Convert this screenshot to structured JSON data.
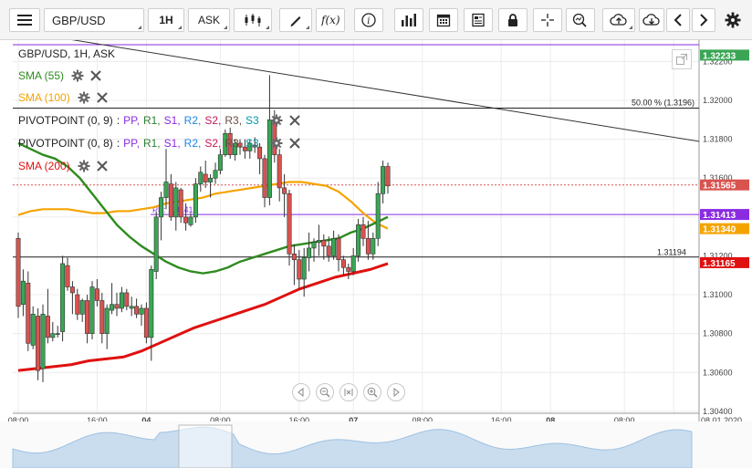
{
  "toolbar": {
    "symbol": "GBP/USD",
    "timeframe": "1H",
    "price_type": "ASK"
  },
  "legend": {
    "title": "GBP/USD, 1H, ASK",
    "sma55": "SMA (55)",
    "sma100": "SMA (100)",
    "pivot1_label": "PIVOTPOINT (0, 9)",
    "pivot2_label": "PIVOTPOINT (0, 8)",
    "pivot_items": [
      "PP,",
      "R1,",
      "S1,",
      "R2,",
      "S2,",
      "R3,",
      "S3"
    ],
    "pivot_sep": ":",
    "sma200": "SMA (200)"
  },
  "colors": {
    "sma55": "#2e8b1e",
    "sma100": "#f5a300",
    "sma200": "#e01010",
    "pivot_colors": [
      "#8a2be2",
      "#2e7d32",
      "#8a2be2",
      "#1e88e5",
      "#c2185b",
      "#6d4c41",
      "#0097a7"
    ],
    "bull": "#3aa655",
    "bear": "#d9534f"
  },
  "annotations": {
    "fib_label": "50.00 % (1.3196)",
    "pp_label": "PP: 1.31413",
    "hline_label": "1.31194"
  },
  "chart_data": {
    "type": "candlestick",
    "ylim": [
      1.3039,
      1.3231
    ],
    "y_ticks": [
      "1.32200",
      "1.32000",
      "1.31800",
      "1.31600",
      "1.31400",
      "1.31200",
      "1.31000",
      "1.30800",
      "1.30600",
      "1.30400"
    ],
    "y_tick_values": [
      1.322,
      1.32,
      1.318,
      1.316,
      1.314,
      1.312,
      1.31,
      1.308,
      1.306,
      1.304
    ],
    "x_ticks": [
      "08:00",
      "16:00",
      "04",
      "08:00",
      "16:00",
      "07",
      "08:00",
      "16:00",
      "08",
      "08:00",
      "08.01.2020"
    ],
    "x_tick_index": [
      0,
      16,
      26,
      41,
      57,
      68,
      82,
      98,
      108,
      123,
      133
    ],
    "price_badges": [
      {
        "label": "1.32233",
        "value": 1.32233,
        "color": "#3aa655"
      },
      {
        "label": "1.31565",
        "value": 1.31565,
        "color": "#d9534f"
      },
      {
        "label": "1.31413",
        "value": 1.31413,
        "color": "#8a2be2"
      },
      {
        "label": "1.31340",
        "value": 1.3134,
        "color": "#f5a300"
      },
      {
        "label": "1.31165",
        "value": 1.31165,
        "color": "#e01010"
      }
    ],
    "candles": [
      [
        1.3129,
        1.3132,
        1.3088,
        1.3094
      ],
      [
        1.3095,
        1.3113,
        1.3089,
        1.3107
      ],
      [
        1.3106,
        1.3112,
        1.3071,
        1.3075
      ],
      [
        1.3074,
        1.3094,
        1.3072,
        1.309
      ],
      [
        1.3089,
        1.3093,
        1.3056,
        1.3061
      ],
      [
        1.3062,
        1.3095,
        1.3055,
        1.309
      ],
      [
        1.3089,
        1.3103,
        1.3075,
        1.3078
      ],
      [
        1.3078,
        1.3086,
        1.3076,
        1.308
      ],
      [
        1.308,
        1.3084,
        1.3078,
        1.308
      ],
      [
        1.3081,
        1.312,
        1.3076,
        1.3116
      ],
      [
        1.3115,
        1.3119,
        1.3102,
        1.3104
      ],
      [
        1.3104,
        1.3107,
        1.309,
        1.3101
      ],
      [
        1.31,
        1.3103,
        1.3087,
        1.309
      ],
      [
        1.309,
        1.3098,
        1.3086,
        1.3097
      ],
      [
        1.3097,
        1.31,
        1.3075,
        1.308
      ],
      [
        1.308,
        1.3107,
        1.3077,
        1.3104
      ],
      [
        1.3103,
        1.3108,
        1.3094,
        1.3097
      ],
      [
        1.3097,
        1.3101,
        1.3075,
        1.308
      ],
      [
        1.308,
        1.3095,
        1.3072,
        1.3093
      ],
      [
        1.3092,
        1.3106,
        1.309,
        1.3095
      ],
      [
        1.3095,
        1.3101,
        1.3089,
        1.3093
      ],
      [
        1.3093,
        1.3104,
        1.3091,
        1.3101
      ],
      [
        1.3101,
        1.3103,
        1.3092,
        1.3094
      ],
      [
        1.3093,
        1.3099,
        1.3089,
        1.3094
      ],
      [
        1.3094,
        1.3098,
        1.3088,
        1.309
      ],
      [
        1.309,
        1.3095,
        1.3084,
        1.3093
      ],
      [
        1.3093,
        1.3096,
        1.3075,
        1.3078
      ],
      [
        1.3078,
        1.3115,
        1.3066,
        1.3113
      ],
      [
        1.3112,
        1.3143,
        1.3108,
        1.314
      ],
      [
        1.314,
        1.3153,
        1.3128,
        1.315
      ],
      [
        1.315,
        1.3175,
        1.3144,
        1.3158
      ],
      [
        1.3157,
        1.3162,
        1.3138,
        1.314
      ],
      [
        1.314,
        1.3158,
        1.3133,
        1.3155
      ],
      [
        1.3154,
        1.3155,
        1.3137,
        1.314
      ],
      [
        1.314,
        1.3147,
        1.3133,
        1.3137
      ],
      [
        1.3136,
        1.3142,
        1.3135,
        1.314
      ],
      [
        1.314,
        1.316,
        1.3137,
        1.3157
      ],
      [
        1.3157,
        1.3166,
        1.3153,
        1.3163
      ],
      [
        1.3162,
        1.3169,
        1.3155,
        1.3158
      ],
      [
        1.3158,
        1.3162,
        1.315,
        1.316
      ],
      [
        1.316,
        1.3168,
        1.3157,
        1.3164
      ],
      [
        1.3164,
        1.3175,
        1.3162,
        1.3172
      ],
      [
        1.3172,
        1.3185,
        1.3171,
        1.3183
      ],
      [
        1.3183,
        1.3186,
        1.317,
        1.3172
      ],
      [
        1.3172,
        1.318,
        1.3169,
        1.3178
      ],
      [
        1.3178,
        1.318,
        1.3172,
        1.3176
      ],
      [
        1.3176,
        1.318,
        1.317,
        1.3174
      ],
      [
        1.3174,
        1.318,
        1.317,
        1.3178
      ],
      [
        1.3177,
        1.3181,
        1.3173,
        1.3176
      ],
      [
        1.3176,
        1.3178,
        1.3162,
        1.317
      ],
      [
        1.317,
        1.3172,
        1.3145,
        1.315
      ],
      [
        1.315,
        1.3213,
        1.3146,
        1.319
      ],
      [
        1.319,
        1.3195,
        1.3168,
        1.3172
      ],
      [
        1.3172,
        1.3175,
        1.3148,
        1.3155
      ],
      [
        1.3155,
        1.3162,
        1.314,
        1.3152
      ],
      [
        1.3152,
        1.3154,
        1.3115,
        1.3121
      ],
      [
        1.3121,
        1.3126,
        1.3105,
        1.3118
      ],
      [
        1.3118,
        1.3123,
        1.3103,
        1.3108
      ],
      [
        1.3108,
        1.3124,
        1.3099,
        1.3119
      ],
      [
        1.3119,
        1.3132,
        1.3112,
        1.3124
      ],
      [
        1.3124,
        1.3129,
        1.3117,
        1.3127
      ],
      [
        1.3127,
        1.3136,
        1.312,
        1.3128
      ],
      [
        1.3128,
        1.3131,
        1.3118,
        1.3125
      ],
      [
        1.3125,
        1.313,
        1.3117,
        1.312
      ],
      [
        1.312,
        1.3133,
        1.3118,
        1.3129
      ],
      [
        1.3129,
        1.3131,
        1.3112,
        1.3118
      ],
      [
        1.3118,
        1.312,
        1.311,
        1.3114
      ],
      [
        1.3114,
        1.3116,
        1.3108,
        1.3112
      ],
      [
        1.3112,
        1.3124,
        1.311,
        1.312
      ],
      [
        1.312,
        1.3139,
        1.3117,
        1.3136
      ],
      [
        1.3136,
        1.314,
        1.3125,
        1.3129
      ],
      [
        1.3129,
        1.3138,
        1.3118,
        1.3121
      ],
      [
        1.3121,
        1.3132,
        1.3118,
        1.3129
      ],
      [
        1.3129,
        1.3158,
        1.3125,
        1.3152
      ],
      [
        1.3152,
        1.3169,
        1.3147,
        1.3166
      ],
      [
        1.3166,
        1.3168,
        1.3152,
        1.3156
      ]
    ],
    "sma55": [
      1.3178,
      1.3175,
      1.3172,
      1.317,
      1.3166,
      1.316,
      1.3152,
      1.3144,
      1.3136,
      1.313,
      1.3125,
      1.3121,
      1.3117,
      1.3114,
      1.3112,
      1.3111,
      1.3112,
      1.3114,
      1.3117,
      1.3119,
      1.3121,
      1.3123,
      1.3125,
      1.3126,
      1.3127,
      1.3128,
      1.3129,
      1.3132,
      1.3134,
      1.3137,
      1.314
    ],
    "sma100": [
      1.3141,
      1.3143,
      1.3144,
      1.3144,
      1.3144,
      1.3143,
      1.3142,
      1.3142,
      1.3143,
      1.3143,
      1.3144,
      1.3145,
      1.3147,
      1.3148,
      1.3149,
      1.315,
      1.3152,
      1.3153,
      1.3154,
      1.3155,
      1.3156,
      1.3157,
      1.3158,
      1.3158,
      1.3157,
      1.3156,
      1.3153,
      1.3148,
      1.3142,
      1.3137,
      1.3134
    ],
    "sma200": [
      1.3061,
      1.3062,
      1.3063,
      1.3064,
      1.3066,
      1.3067,
      1.3068,
      1.3071,
      1.3075,
      1.3079,
      1.3083,
      1.3086,
      1.3089,
      1.3092,
      1.3095,
      1.3099,
      1.3103,
      1.3106,
      1.3109,
      1.3111,
      1.3113,
      1.3116
    ]
  }
}
